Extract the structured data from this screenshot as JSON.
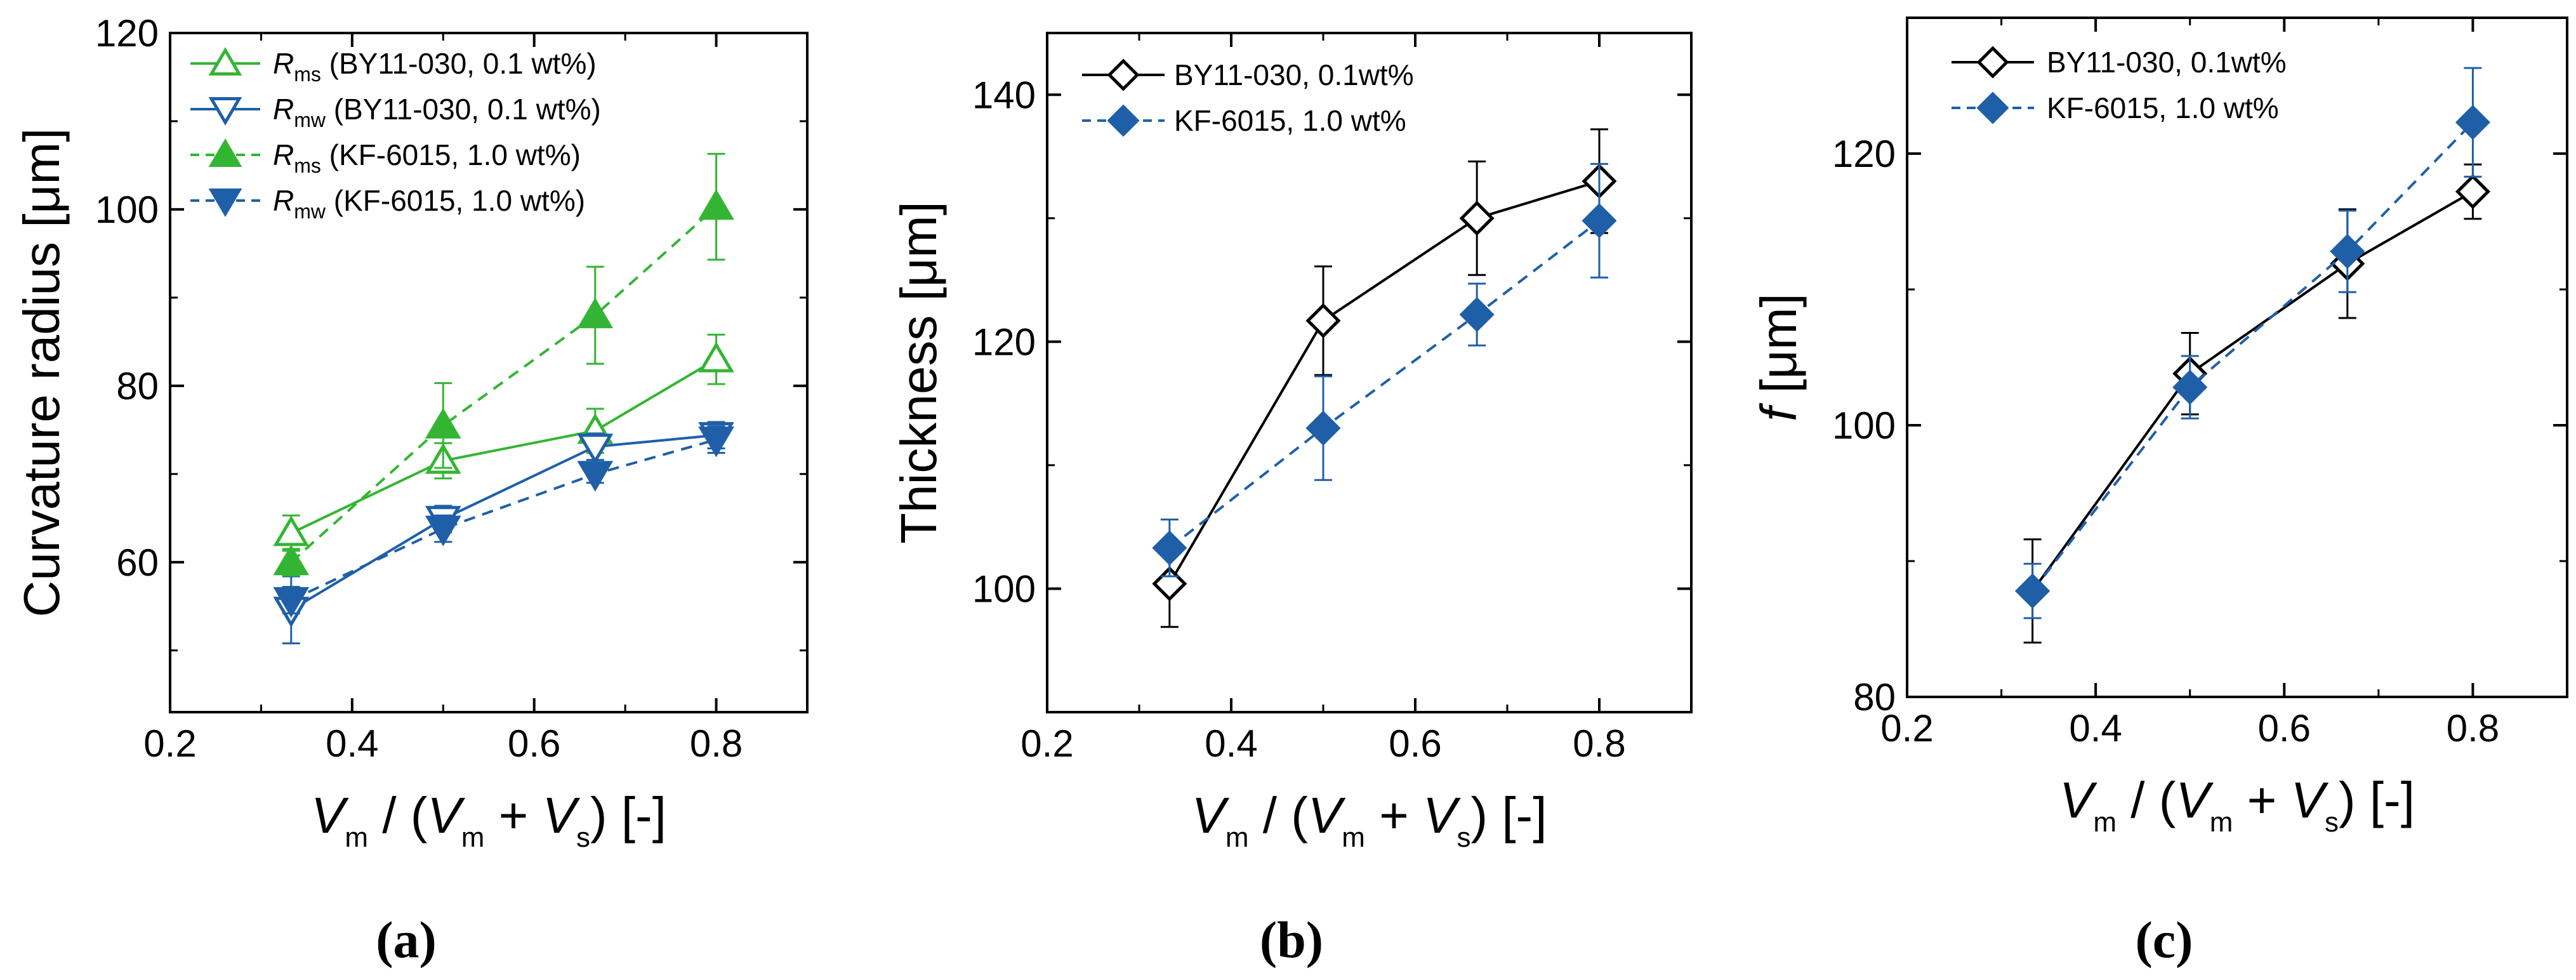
{
  "figure": {
    "colors": {
      "green": "#33b533",
      "blue": "#1f5fa8",
      "black": "#000000"
    },
    "xlabel": {
      "V": "V",
      "m": "m",
      "slash": " / (",
      "plus": " + ",
      "s": "s",
      "tail": ") [-]"
    }
  },
  "chart_data": [
    {
      "id": "a",
      "type": "line",
      "caption": "(a)",
      "ylabel": "Curvature radius [μm]",
      "xlim": [
        0.2,
        0.9
      ],
      "ylim": [
        43,
        120
      ],
      "xticks": [
        "0.2",
        "0.4",
        "0.6",
        "0.8"
      ],
      "yticks": [
        "60",
        "80",
        "100",
        "120"
      ],
      "x": [
        0.333,
        0.5,
        0.667,
        0.8
      ],
      "series": [
        {
          "name": "R_ms (BY11-030, 0.1 wt%)",
          "sym": "R",
          "sub": "ms",
          "rest": " (BY11-030, 0.1 wt%)",
          "color": "#33b533",
          "marker": "triangle-up",
          "filled": false,
          "dashed": false,
          "values": [
            63.3,
            71.5,
            74.9,
            83.0
          ],
          "errors": [
            2.0,
            2.0,
            2.5,
            2.8
          ]
        },
        {
          "name": "R_mw (BY11-030, 0.1 wt%)",
          "sym": "R",
          "sub": "mw",
          "rest": " (BY11-030, 0.1 wt%)",
          "color": "#1f5fa8",
          "marker": "triangle-down",
          "filled": false,
          "dashed": false,
          "values": [
            54.6,
            64.9,
            73.1,
            74.4
          ],
          "errors": [
            3.8,
            1.5,
            1.5,
            1.5
          ]
        },
        {
          "name": "R_ms (KF-6015, 1.0 wt%)",
          "sym": "R",
          "sub": "ms",
          "rest": " (KF-6015, 1.0 wt%)",
          "color": "#33b533",
          "marker": "triangle-up",
          "filled": true,
          "dashed": true,
          "values": [
            60.0,
            75.5,
            88.0,
            100.3
          ],
          "errors": [
            1.5,
            4.8,
            5.5,
            6.0
          ]
        },
        {
          "name": "R_mw (KF-6015, 1.0 wt%)",
          "sym": "R",
          "sub": "mw",
          "rest": " (KF-6015, 1.0 wt%)",
          "color": "#1f5fa8",
          "marker": "triangle-down",
          "filled": true,
          "dashed": true,
          "values": [
            55.7,
            63.8,
            70.0,
            73.9
          ],
          "errors": [
            1.5,
            1.5,
            1.0,
            1.5
          ]
        }
      ]
    },
    {
      "id": "b",
      "type": "line",
      "caption": "(b)",
      "ylabel": "Thickness [μm]",
      "xlim": [
        0.2,
        0.9
      ],
      "ylim": [
        90,
        145
      ],
      "xticks": [
        "0.2",
        "0.4",
        "0.6",
        "0.8"
      ],
      "yticks": [
        "100",
        "120",
        "140"
      ],
      "x": [
        0.333,
        0.5,
        0.667,
        0.8
      ],
      "series": [
        {
          "name": "BY11-030, 0.1wt%",
          "color": "#000000",
          "marker": "diamond",
          "filled": false,
          "dashed": false,
          "values": [
            100.4,
            121.7,
            130.0,
            133.0
          ],
          "errors": [
            3.5,
            4.4,
            4.6,
            4.2
          ]
        },
        {
          "name": "KF-6015, 1.0 wt%",
          "color": "#1f5fa8",
          "marker": "diamond",
          "filled": true,
          "dashed": true,
          "values": [
            103.3,
            113.0,
            122.2,
            129.8
          ],
          "errors": [
            2.3,
            4.2,
            2.5,
            4.6
          ]
        }
      ]
    },
    {
      "id": "c",
      "type": "line",
      "caption": "(c)",
      "ylabel": "f [μm]",
      "ylabel_italic": "f",
      "ylabel_rest": " [μm]",
      "xlim": [
        0.2,
        0.9
      ],
      "ylim": [
        80,
        130
      ],
      "xticks": [
        "0.2",
        "0.4",
        "0.6",
        "0.8"
      ],
      "yticks": [
        "80",
        "100",
        "120"
      ],
      "x": [
        0.333,
        0.5,
        0.667,
        0.8
      ],
      "series": [
        {
          "name": "BY11-030, 0.1wt%",
          "color": "#000000",
          "marker": "diamond",
          "filled": false,
          "dashed": false,
          "values": [
            87.8,
            103.8,
            111.9,
            117.2
          ],
          "errors": [
            3.8,
            3.0,
            4.0,
            2.0
          ]
        },
        {
          "name": "KF-6015, 1.0 wt%",
          "color": "#1f5fa8",
          "marker": "diamond",
          "filled": true,
          "dashed": true,
          "values": [
            87.8,
            102.8,
            112.8,
            122.3
          ],
          "errors": [
            2.0,
            2.3,
            3.0,
            4.0
          ]
        }
      ]
    }
  ]
}
